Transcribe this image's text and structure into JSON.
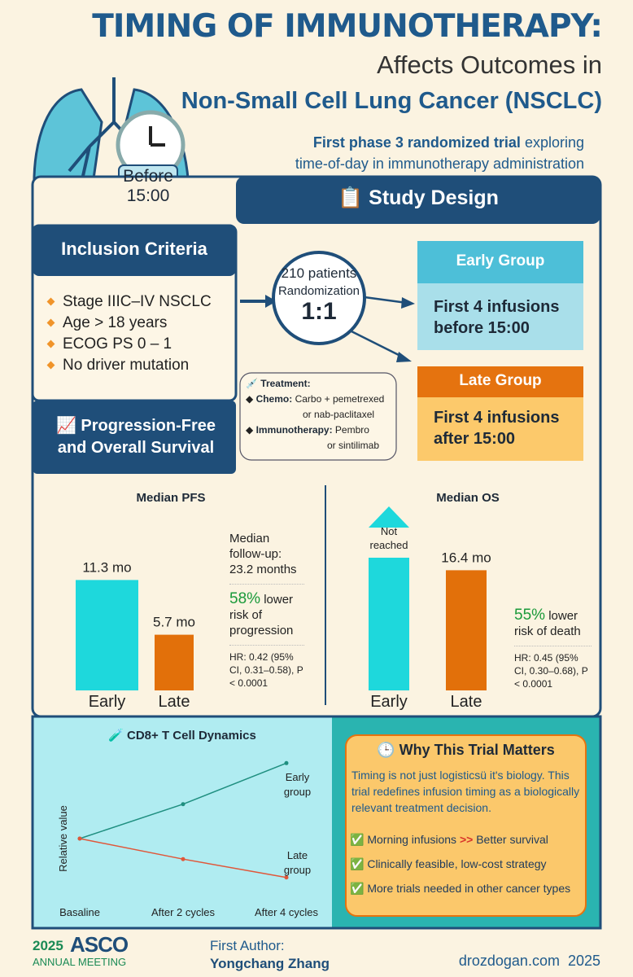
{
  "header": {
    "title": "TIMING OF IMMUNOTHERAPY:",
    "subtitle": "Affects Outcomes in",
    "subject": "Non-Small Cell Lung Cancer (NSCLC)",
    "tagline_bold": "First phase 3 randomized trial",
    "tagline_rest": "exploring",
    "tagline_line2": "time-of-day in immunotherapy administration"
  },
  "clock_label": {
    "line1": "Before",
    "line2": "15:00"
  },
  "study_design": {
    "heading": "📋 Study Design"
  },
  "inclusion": {
    "title": "Inclusion Criteria",
    "items": [
      "Stage IIIC–IV NSCLC",
      "Age > 18 years",
      "ECOG PS 0 – 1",
      "No driver mutation"
    ]
  },
  "randomization": {
    "patients": "210 patients",
    "label": "Randomization",
    "ratio": "1:1"
  },
  "groups": {
    "early": {
      "title": "Early Group",
      "text": "First 4 infusions before 15:00"
    },
    "late": {
      "title": "Late Group",
      "text": "First 4 infusions after 15:00"
    }
  },
  "treatment": {
    "title": "💉 Treatment:",
    "chemo_label": "Chemo:",
    "chemo_text": "Carbo + pemetrexed",
    "chemo_text2": "or nab-paclitaxel",
    "immuno_label": "Immunotherapy:",
    "immuno_text": "Pembro",
    "immuno_text2": "or sintilimab"
  },
  "survival_heading": "📈 Progression-Free and Overall Survival",
  "pfs_chart": {
    "type": "bar",
    "title": "Median PFS",
    "categories": [
      "Early",
      "Late"
    ],
    "values": [
      11.3,
      5.7
    ],
    "value_labels": [
      "11.3 mo",
      "5.7 mo"
    ],
    "colors": [
      "#1ed8dc",
      "#e2700a"
    ]
  },
  "pfs_notes": {
    "followup": "Median follow-up: 23.2 months",
    "reduction": "58%",
    "reduction_text": "lower risk of progression",
    "hr": "HR: 0.42 (95% CI, 0.31–0.58), P < 0.0001"
  },
  "os_chart": {
    "type": "bar",
    "title": "Median OS",
    "categories": [
      "Early",
      "Late"
    ],
    "values": [
      null,
      16.4
    ],
    "value_labels": [
      "Not reached",
      "16.4 mo"
    ],
    "colors": [
      "#1ed8dc",
      "#e2700a"
    ]
  },
  "os_notes": {
    "reduction": "55%",
    "reduction_text": "lower risk of death",
    "hr": "HR: 0.45 (95% CI, 0.30–0.68), P < 0.0001"
  },
  "cd8_chart": {
    "type": "line",
    "title": "🧪 CD8+ T Cell Dynamics",
    "y_label": "Relative value",
    "categories": [
      "Basaline",
      "After 2 cycles",
      "After 4 cycles"
    ],
    "series": [
      {
        "name": "Early group",
        "color": "#1f8f80",
        "values": [
          1,
          1.47,
          2.03
        ]
      },
      {
        "name": "Late group",
        "color": "#e0573a",
        "values": [
          1,
          0.72,
          0.47
        ]
      }
    ]
  },
  "why": {
    "title": "🕒 Why This Trial Matters",
    "text": "Timing is not just logisticsü it's biology. This trial redefines infusion timing as a biologically relevant treatment decision.",
    "first_point": {
      "check": "✅",
      "text": "Morning infusions",
      "emphasis": ">>",
      "rest": "Better survival"
    },
    "points": [
      {
        "check": "✅",
        "text": "Clinically feasible, low-cost strategy"
      },
      {
        "check": "✅",
        "text": "More trials needed in other cancer types"
      }
    ]
  },
  "footer": {
    "year": "2025",
    "org": "ASCO",
    "meeting": "ANNUAL MEETING",
    "author_label": "First Author:",
    "author": "Yongchang Zhang",
    "site": "drozdogan.com  2025"
  }
}
